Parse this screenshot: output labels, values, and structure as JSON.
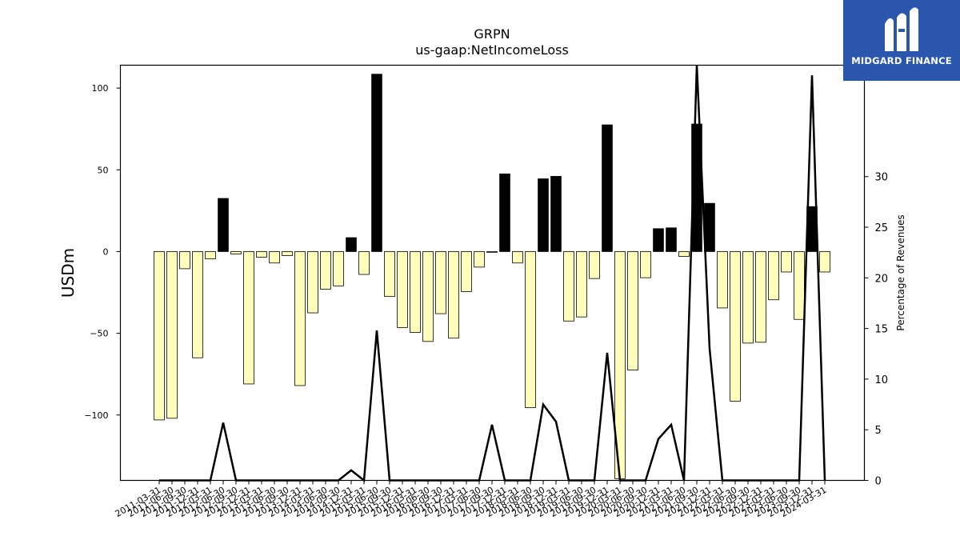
{
  "brand": {
    "name": "MIDGARD FINANCE",
    "background": "#2a56ad"
  },
  "chart_data": {
    "type": "bar",
    "title": "GRPN",
    "subtitle": "us-gaap:NetIncomeLoss",
    "ylabel": "USDm",
    "y2label": "Percentage of Revenues",
    "ylim": [
      -140,
      114
    ],
    "y2lim": [
      0,
      41
    ],
    "yticks": [
      100,
      50,
      0,
      -50,
      -100
    ],
    "y2ticks": [
      0,
      5,
      10,
      15,
      20,
      25,
      30
    ],
    "positive_color": "#000000",
    "negative_color": "#ffffbb",
    "line_color": "#000000",
    "categories": [
      "2011-03-31",
      "2011-06-30",
      "2011-09-30",
      "2011-12-31",
      "2012-03-31",
      "2012-06-30",
      "2012-09-30",
      "2012-12-31",
      "2013-03-31",
      "2013-06-30",
      "2013-09-30",
      "2013-12-31",
      "2014-03-31",
      "2014-06-30",
      "2014-09-30",
      "2014-12-31",
      "2015-03-31",
      "2015-06-30",
      "2015-09-30",
      "2015-12-31",
      "2016-03-31",
      "2016-06-30",
      "2016-09-30",
      "2016-12-31",
      "2017-03-31",
      "2017-06-30",
      "2017-09-30",
      "2017-12-31",
      "2018-03-31",
      "2018-06-30",
      "2018-09-30",
      "2018-12-31",
      "2019-03-31",
      "2019-06-30",
      "2019-09-30",
      "2019-12-31",
      "2020-03-31",
      "2020-06-30",
      "2020-09-30",
      "2020-12-31",
      "2021-03-31",
      "2021-06-30",
      "2021-09-30",
      "2021-12-31",
      "2022-03-31",
      "2022-06-30",
      "2022-09-30",
      "2022-12-31",
      "2023-03-31",
      "2023-06-30",
      "2023-09-30",
      "2023-12-31",
      "2024-03-31"
    ],
    "xtick_labels": [
      "2011-03-31",
      "2011-06-30",
      "2011-09-30",
      "2011-12-31",
      "2012-03-31",
      "2012-06-30",
      "2012-09-30",
      "2012-12-31",
      "2013-03-31",
      "2013-06-30",
      "2013-09-30",
      "2013-12-31",
      "2014-03-31",
      "2014-06-30",
      "2014-09-30",
      "2014-12-31",
      "2015-03-31",
      "2015-06-30",
      "2015-09-30",
      "2015-12-31",
      "2016-03-31",
      "2016-06-30",
      "2016-09-30",
      "2016-12-31",
      "2017-03-31",
      "2017-06-30",
      "2017-09-30",
      "2017-12-31",
      "2018-03-31",
      "2018-06-30",
      "2018-09-30",
      "2018-12-31",
      "2019-03-31",
      "2019-06-30",
      "2019-09-30",
      "2019-12-31",
      "2020-03-31",
      "2020-06-30",
      "2020-09-30",
      "2020-12-31",
      "2021-03-31",
      "2021-06-30",
      "2021-09-30",
      "2021-12-31",
      "2022-03-31",
      "2022-06-30",
      "2022-09-30",
      "2022-12-31",
      "2023-03-31",
      "2023-06-30",
      "2023-09-30",
      "2023-12-31",
      "2024-03-31"
    ],
    "series": [
      {
        "type": "bar",
        "values": [
          -103,
          -102,
          -10.5,
          -65,
          -4.5,
          32.5,
          -1.5,
          -81,
          -3.5,
          -7,
          -2.5,
          -82,
          -37.5,
          -23,
          -21,
          8.5,
          -14,
          108.5,
          -27.5,
          -46.5,
          -49.5,
          -55,
          -38,
          -53,
          -24.5,
          -9.5,
          -0.5,
          47.5,
          -7,
          -95.5,
          44.5,
          46,
          -42.5,
          -40,
          -16.5,
          77.5,
          -139,
          -72.5,
          -16,
          14,
          14.5,
          -3,
          78,
          29.5,
          -34.5,
          -91.5,
          -56,
          -55.5,
          -29.5,
          -12.5,
          -41.5,
          27.5,
          -12.5
        ]
      },
      {
        "type": "line",
        "values": [
          0,
          0,
          0,
          0,
          0,
          5.7,
          0,
          0,
          0,
          0,
          0,
          0,
          0,
          0,
          0,
          1,
          0,
          14.8,
          0,
          0,
          0,
          0,
          0,
          0,
          0,
          0,
          5.5,
          0,
          0,
          0,
          7.5,
          5.8,
          0,
          0,
          0,
          12.6,
          0,
          0,
          0,
          4.1,
          5.5,
          0,
          41,
          13,
          0,
          0,
          0,
          0,
          0,
          0,
          0,
          40,
          0
        ]
      }
    ]
  }
}
